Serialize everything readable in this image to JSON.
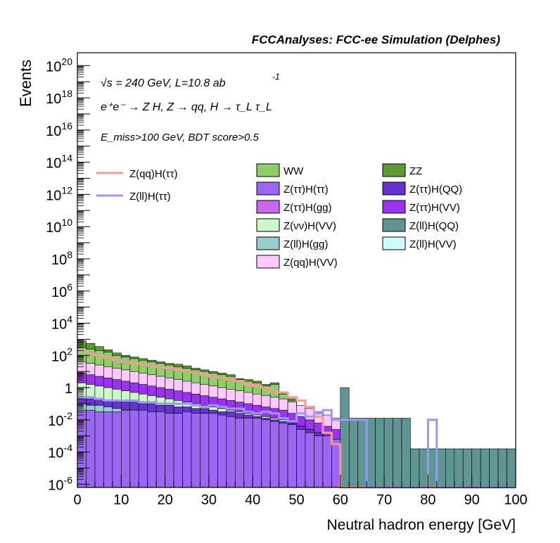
{
  "chart_data": {
    "type": "bar",
    "title": "FCCAnalyses: FCC-ee Simulation (Delphes)",
    "xlabel": "Neutral hadron energy [GeV]",
    "ylabel": "Events",
    "xlim": [
      0,
      100
    ],
    "ylim_log10": [
      -6.2,
      20.8
    ],
    "y_scale": "log",
    "x_ticks": [
      "0",
      "10",
      "20",
      "30",
      "40",
      "50",
      "60",
      "70",
      "80",
      "90",
      "100"
    ],
    "y_ticks": [
      {
        "base": "10",
        "exp": "20",
        "log10": 20
      },
      {
        "base": "10",
        "exp": "18",
        "log10": 18
      },
      {
        "base": "10",
        "exp": "16",
        "log10": 16
      },
      {
        "base": "10",
        "exp": "14",
        "log10": 14
      },
      {
        "base": "10",
        "exp": "12",
        "log10": 12
      },
      {
        "base": "10",
        "exp": "10",
        "log10": 10
      },
      {
        "base": "10",
        "exp": "8",
        "log10": 8
      },
      {
        "base": "10",
        "exp": "6",
        "log10": 6
      },
      {
        "base": "10",
        "exp": "4",
        "log10": 4
      },
      {
        "base": "10",
        "exp": "2",
        "log10": 2
      },
      {
        "base": "1",
        "exp": "",
        "log10": 0
      },
      {
        "base": "10",
        "exp": "-2",
        "log10": -2
      },
      {
        "base": "10",
        "exp": "-4",
        "log10": -4
      },
      {
        "base": "10",
        "exp": "-6",
        "log10": -6
      }
    ],
    "annotations": {
      "line1": "√s = 240 GeV, L=10.8 ab",
      "line1_sup": "-1",
      "line2": "e⁺e⁻ → Z H, Z → qq, H → τ_L τ_L",
      "line3": "E_miss>100 GeV, BDT score>0.5"
    },
    "legend_placement": "top",
    "signal_legend": [
      {
        "name": "Z(qq)H(ττ)",
        "color": "#f4999a"
      },
      {
        "name": "Z(ll)H(ττ)",
        "color": "#9999f4"
      }
    ],
    "background_legend": [
      {
        "name": "WW",
        "color": "#8fcf6a"
      },
      {
        "name": "ZZ",
        "color": "#5e9a32"
      },
      {
        "name": "Z(ττ)H(ττ)",
        "color": "#9a66f2"
      },
      {
        "name": "Z(ττ)H(QQ)",
        "color": "#6633cc"
      },
      {
        "name": "Z(ττ)H(gg)",
        "color": "#cc66ee"
      },
      {
        "name": "Z(ττ)H(VV)",
        "color": "#9933ee"
      },
      {
        "name": "Z(νν)H(VV)",
        "color": "#ccf8cc"
      },
      {
        "name": "Z(ll)H(QQ)",
        "color": "#5f9593"
      },
      {
        "name": "Z(ll)H(gg)",
        "color": "#99cccc"
      },
      {
        "name": "Z(ll)H(VV)",
        "color": "#ccfcfc"
      },
      {
        "name": "Z(qq)H(VV)",
        "color": "#fccafc"
      }
    ],
    "bin_width": 2,
    "stack_top_log10": [
      2.9,
      2.75,
      2.55,
      2.35,
      2.15,
      2.0,
      1.9,
      1.8,
      1.7,
      1.6,
      1.5,
      1.45,
      1.35,
      1.2,
      1.1,
      1.0,
      0.9,
      0.8,
      0.55,
      0.5,
      0.4,
      0.2,
      0.3,
      -0.3,
      -0.7,
      -1.8,
      -2.8,
      -2.8,
      -2.8,
      0.0,
      0.0,
      -1.9,
      -1.9,
      -1.9,
      -1.9,
      -1.9,
      -1.9,
      -1.9,
      -3.8,
      -3.8,
      -3.8,
      -3.8,
      -3.8,
      -3.8,
      -3.8,
      -3.8,
      -3.8,
      -3.8,
      -3.8,
      -3.8
    ],
    "stack_bands": [
      {
        "name": "Z(ττ)H(ττ)",
        "color": "#9a66f2",
        "from": [
          -6.2
        ],
        "to_log10": [
          -1.4,
          -1.4,
          -1.5,
          -1.5,
          -1.5,
          -1.4,
          -1.4,
          -1.4,
          -1.5,
          -1.5,
          -1.6,
          -1.6,
          -1.5,
          -1.6,
          -1.6,
          -1.6,
          -1.7,
          -1.8,
          -1.9,
          -1.9,
          -1.9,
          -2.0,
          -2.1,
          -2.2,
          -2.3,
          -2.6,
          -2.8,
          -3.0,
          -3.0,
          -3.2
        ]
      },
      {
        "name": "Z(ll)H(gg)",
        "color": "#99cccc",
        "to_log10": [
          -1.0,
          -1.1,
          -1.1,
          -1.2,
          -1.3,
          -1.4,
          -1.4,
          -1.5,
          -1.5,
          -1.6,
          -1.6,
          -1.7,
          -1.7,
          -1.8,
          -1.8,
          -1.9,
          -2.0,
          -2.0,
          -2.1,
          -2.2,
          -2.3,
          -2.4,
          -2.5,
          -2.6,
          -2.8,
          -3.0,
          -3.2,
          -3.4,
          -3.6,
          -3.8
        ]
      },
      {
        "name": "Z(ττ)H(QQ)",
        "color": "#6633cc",
        "to_log10": [
          -0.6,
          -0.7,
          -0.7,
          -0.8,
          -0.8,
          -0.9,
          -0.9,
          -1.0,
          -1.0,
          -1.1,
          -1.1,
          -1.2,
          -1.2,
          -1.3,
          -1.3,
          -1.4,
          -1.5,
          -1.5,
          -1.6,
          -1.7,
          -1.8,
          -1.9,
          -2.0,
          -2.1,
          -2.2,
          -2.4,
          -2.6,
          -2.8,
          -3.0,
          -3.2
        ]
      },
      {
        "name": "Z(νν)H(VV)",
        "color": "#ccf8cc",
        "to_log10": [
          0.3,
          0.2,
          0.1,
          0.0,
          -0.1,
          -0.2,
          -0.3,
          -0.4,
          -0.5,
          -0.6,
          -0.7,
          -0.8,
          -0.9,
          -1.0,
          -1.1,
          -1.2,
          -1.3,
          -1.4,
          -1.5,
          -1.6,
          -1.7,
          -1.8,
          -1.9,
          -2.0,
          -2.2,
          -2.4,
          -2.6,
          -2.8,
          -3.0,
          -3.2
        ]
      },
      {
        "name": "Z(ττ)H(VV)",
        "color": "#9933ee",
        "to_log10": [
          0.9,
          0.8,
          0.7,
          0.6,
          0.5,
          0.4,
          0.3,
          0.2,
          0.1,
          0.0,
          -0.1,
          -0.2,
          -0.3,
          -0.4,
          -0.5,
          -0.6,
          -0.7,
          -0.8,
          -0.9,
          -1.0,
          -1.1,
          -1.2,
          -1.3,
          -1.4,
          -1.6,
          -1.8,
          -2.0,
          -2.2,
          -2.4,
          -2.6
        ]
      },
      {
        "name": "Z(qq)H(VV)",
        "color": "#fccafc",
        "to_log10": [
          1.6,
          1.5,
          1.4,
          1.3,
          1.2,
          1.1,
          1.0,
          0.9,
          0.8,
          0.7,
          0.6,
          0.5,
          0.4,
          0.3,
          0.2,
          0.1,
          0.0,
          -0.1,
          -0.2,
          -0.3,
          -0.4,
          -0.5,
          -0.6,
          -0.7,
          -0.9,
          -1.1,
          -1.3,
          -1.5,
          -1.7,
          -1.9
        ]
      },
      {
        "name": "WW",
        "color": "#8fcf6a",
        "to_log10": [
          2.5,
          2.4,
          2.3,
          2.2,
          2.0,
          1.9,
          1.8,
          1.7,
          1.6,
          1.5,
          1.4,
          1.3,
          1.2,
          1.1,
          1.0,
          0.9,
          0.8,
          0.7,
          0.5,
          0.4,
          0.3,
          0.1,
          0.2,
          -0.4,
          -0.8,
          -1.9,
          -2.9,
          -2.9,
          -2.9,
          -3.0
        ]
      },
      {
        "name": "ZZ",
        "color": "#5e9a32",
        "to_log10": [
          2.9,
          2.75,
          2.55,
          2.35,
          2.15,
          2.0,
          1.9,
          1.8,
          1.7,
          1.6,
          1.5,
          1.45,
          1.35,
          1.2,
          1.1,
          1.0,
          0.9,
          0.8,
          0.55,
          0.5,
          0.4,
          0.2,
          0.3,
          -0.3,
          -0.7,
          -1.8,
          -2.8,
          -2.8,
          -2.8,
          -2.9
        ]
      }
    ],
    "signal_series": [
      {
        "name": "Z(qq)H(ττ)",
        "color": "#f4999a",
        "bin_width": 2,
        "values_log10": [
          2.3,
          2.1,
          2.0,
          1.85,
          1.7,
          1.6,
          1.5,
          1.45,
          1.35,
          1.25,
          1.2,
          1.1,
          1.0,
          0.95,
          0.8,
          0.7,
          0.6,
          0.5,
          0.4,
          0.2,
          0.1,
          0.0,
          -0.3,
          -0.3,
          -0.6,
          -0.8,
          -1.2,
          -1.8,
          -2.8,
          -3.5,
          -6.2,
          -6.2,
          -6.2,
          -6.2,
          -6.2,
          -6.2,
          -6.2,
          -6.2,
          -6.2,
          -6.2,
          -6.2,
          -6.2,
          -6.2,
          -6.2,
          -6.2,
          -6.2,
          -6.2,
          -6.2,
          -6.2,
          -6.2
        ]
      },
      {
        "name": "Z(ll)H(ττ)",
        "color": "#9999f4",
        "bin_width": 2,
        "values_log10": [
          -0.6,
          -0.6,
          -0.7,
          -0.8,
          -0.8,
          -0.8,
          -0.8,
          -0.9,
          -0.9,
          -1.0,
          -1.0,
          -1.0,
          -1.0,
          -1.1,
          -1.2,
          -1.1,
          -1.2,
          -1.3,
          -1.3,
          -1.5,
          -1.6,
          -1.5,
          -1.6,
          -1.9,
          -2.1,
          -1.6,
          -1.8,
          -1.6,
          -1.4,
          -2.0,
          -2.0,
          -2.0,
          -2.0,
          -6.2,
          -6.2,
          -6.2,
          -6.2,
          -6.2,
          -6.2,
          -6.2,
          -2.0,
          -6.2,
          -6.2,
          -6.2,
          -6.2,
          -6.2,
          -6.2,
          -6.2,
          -6.2,
          -6.2
        ]
      }
    ]
  }
}
